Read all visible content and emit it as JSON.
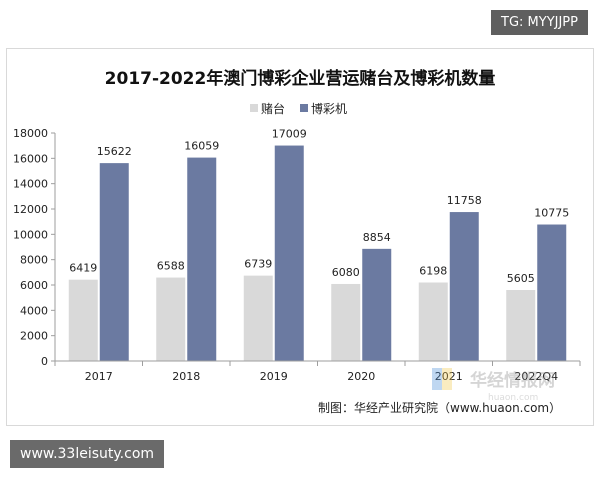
{
  "badges": {
    "top_right": "TG: MYYJJPP",
    "bottom_left": "www.33leisuty.com"
  },
  "watermark": {
    "cn": "华经情报网",
    "latin": "huaon.com"
  },
  "source_note": "制图：华经产业研究院（www.huaon.com）",
  "colors": {
    "series_tables": "#d9d9d9",
    "series_slots": "#6b7aa1",
    "axis": "#9e9e9e",
    "text": "#222222"
  },
  "chart_data": {
    "type": "bar",
    "title": "2017-2022年澳门博彩企业营运赌台及博彩机数量",
    "categories": [
      "2017",
      "2018",
      "2019",
      "2020",
      "2021",
      "2022Q4"
    ],
    "series": [
      {
        "name": "赌台",
        "values": [
          6419,
          6588,
          6739,
          6080,
          6198,
          5605
        ]
      },
      {
        "name": "博彩机",
        "values": [
          15622,
          16059,
          17009,
          8854,
          11758,
          10775
        ]
      }
    ],
    "ylim": [
      0,
      18000
    ],
    "yticks": [
      0,
      2000,
      4000,
      6000,
      8000,
      10000,
      12000,
      14000,
      16000,
      18000
    ],
    "grid": false,
    "legend": "top-center"
  }
}
